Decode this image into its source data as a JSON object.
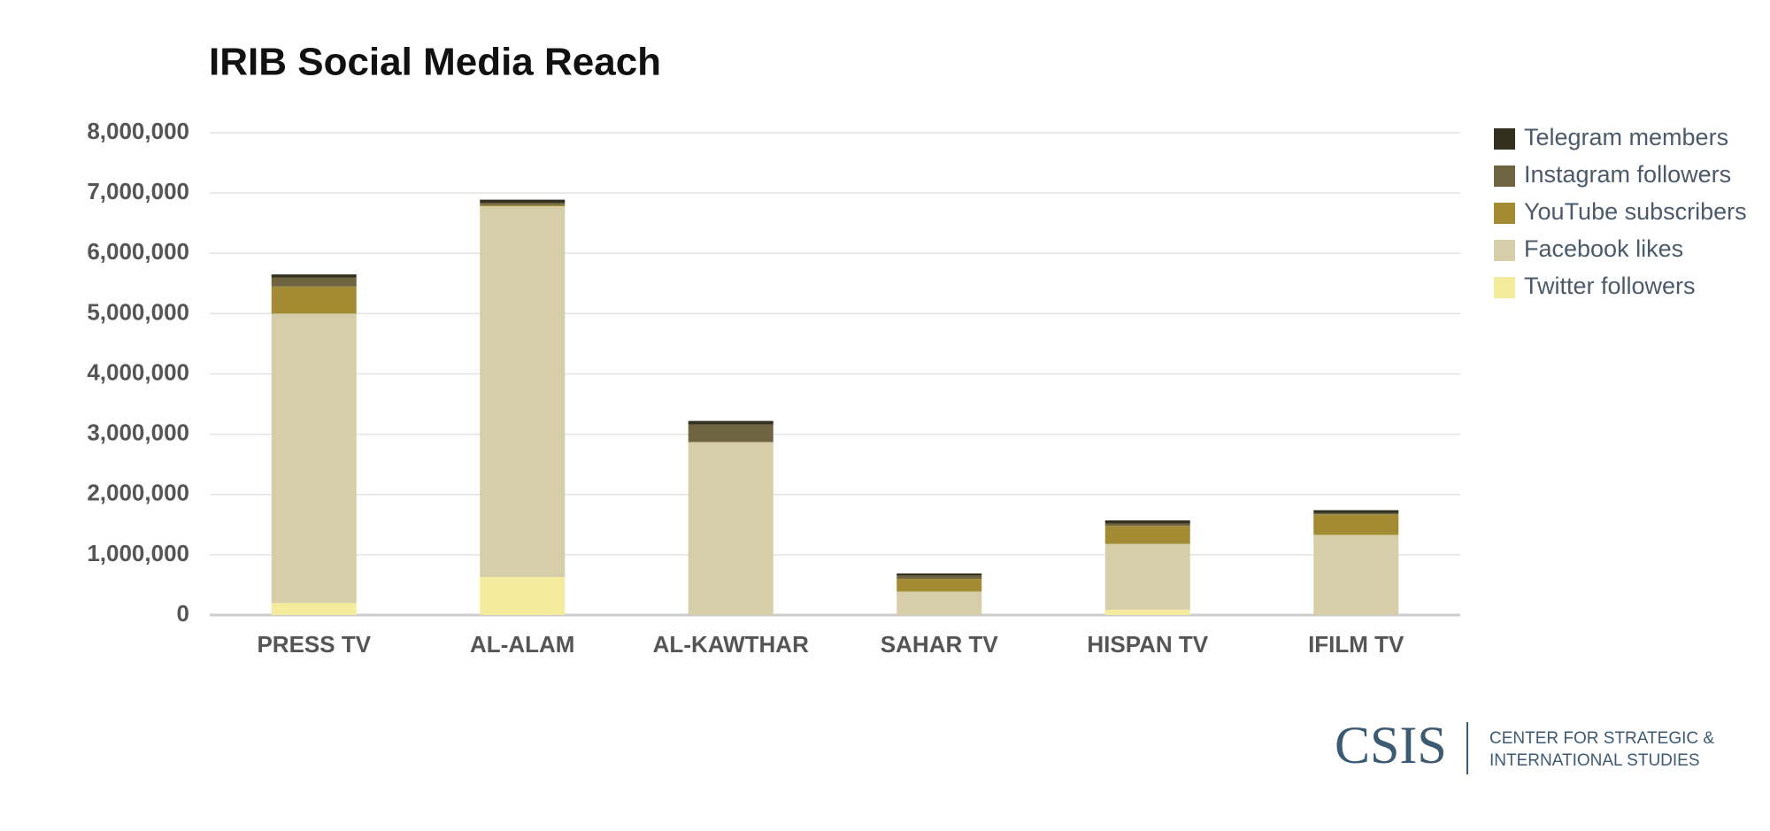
{
  "chart_data": {
    "type": "stacked_bar",
    "title": "IRIB Social Media Reach",
    "categories": [
      "PRESS TV",
      "AL-ALAM",
      "AL-KAWTHAR",
      "SAHAR TV",
      "HISPAN TV",
      "IFILM TV"
    ],
    "series": [
      {
        "name": "Twitter followers",
        "color": "#f4ec9c",
        "values": [
          200000,
          630000,
          0,
          0,
          90000,
          0
        ]
      },
      {
        "name": "Facebook likes",
        "color": "#d6cda9",
        "values": [
          4800000,
          6150000,
          2870000,
          390000,
          1090000,
          1330000
        ]
      },
      {
        "name": "YouTube subscribers",
        "color": "#a38b34",
        "values": [
          450000,
          20000,
          0,
          210000,
          300000,
          340000
        ]
      },
      {
        "name": "Instagram followers",
        "color": "#6e6440",
        "values": [
          150000,
          40000,
          290000,
          55000,
          40000,
          20000
        ]
      },
      {
        "name": "Telegram members",
        "color": "#33301f",
        "values": [
          50000,
          50000,
          60000,
          35000,
          50000,
          50000
        ]
      }
    ],
    "ylim": [
      0,
      8000000
    ],
    "yticks": [
      0,
      {
        "value": 1000000,
        "label": "1,000,000"
      },
      {
        "value": 2000000,
        "label": "2,000,000"
      },
      {
        "value": 3000000,
        "label": "3,000,000"
      },
      {
        "value": 4000000,
        "label": "4,000,000"
      },
      {
        "value": 5000000,
        "label": "5,000,000"
      },
      {
        "value": 6000000,
        "label": "6,000,000"
      },
      {
        "value": 7000000,
        "label": "7,000,000"
      },
      {
        "value": 8000000,
        "label": "8,000,000"
      }
    ],
    "grid": true,
    "legend": "right"
  },
  "source_logo": {
    "name": "CSIS",
    "line1": "CENTER FOR STRATEGIC &",
    "line2": "INTERNATIONAL STUDIES"
  }
}
